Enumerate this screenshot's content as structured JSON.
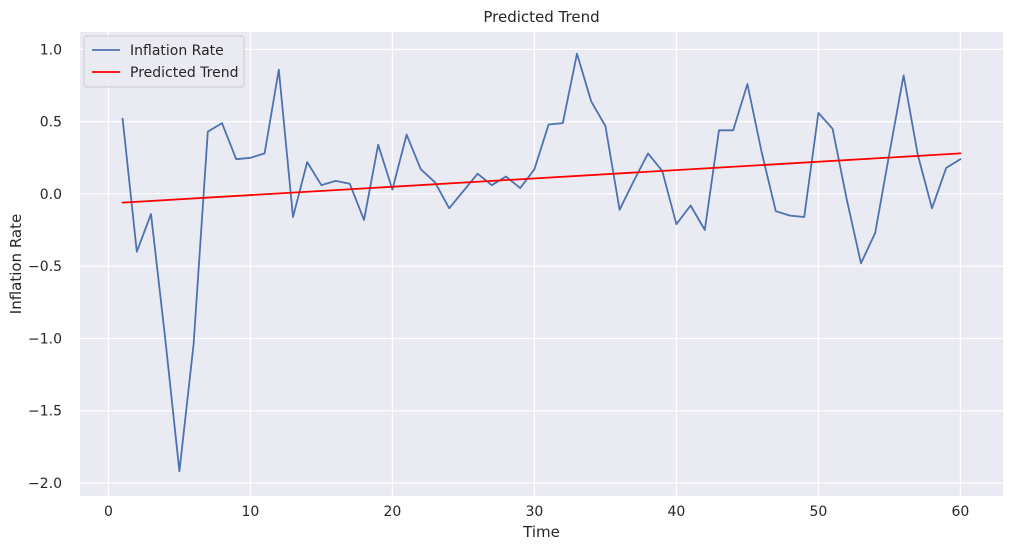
{
  "chart_data": {
    "type": "line",
    "title": "Predicted Trend",
    "xlabel": "Time",
    "ylabel": "Inflation Rate",
    "xlim": [
      -2,
      63
    ],
    "ylim": [
      -2.09,
      1.12
    ],
    "xticks": [
      0,
      10,
      20,
      30,
      40,
      50,
      60
    ],
    "yticks": [
      -2.0,
      -1.5,
      -1.0,
      -0.5,
      0.0,
      0.5,
      1.0
    ],
    "ytick_labels": [
      "−2.0",
      "−1.5",
      "−1.0",
      "−0.5",
      "0.0",
      "0.5",
      "1.0"
    ],
    "grid": true,
    "legend_position": "top-left",
    "series": [
      {
        "name": "Inflation Rate",
        "color": "#4c72b0",
        "x": [
          1,
          2,
          3,
          4,
          5,
          6,
          7,
          8,
          9,
          10,
          11,
          12,
          13,
          14,
          15,
          16,
          17,
          18,
          19,
          20,
          21,
          22,
          23,
          24,
          25,
          26,
          27,
          28,
          29,
          30,
          31,
          32,
          33,
          34,
          35,
          36,
          37,
          38,
          39,
          40,
          41,
          42,
          43,
          44,
          45,
          46,
          47,
          48,
          49,
          50,
          51,
          52,
          53,
          54,
          55,
          56,
          57,
          58,
          59,
          60
        ],
        "y": [
          0.52,
          -0.4,
          -0.14,
          -1.0,
          -1.92,
          -1.04,
          0.43,
          0.49,
          0.24,
          0.25,
          0.28,
          0.86,
          -0.16,
          0.22,
          0.06,
          0.09,
          0.07,
          -0.18,
          0.34,
          0.03,
          0.41,
          0.17,
          0.08,
          -0.1,
          0.02,
          0.14,
          0.06,
          0.12,
          0.04,
          0.17,
          0.48,
          0.49,
          0.97,
          0.64,
          0.47,
          -0.11,
          0.09,
          0.28,
          0.16,
          -0.21,
          -0.08,
          -0.25,
          0.44,
          0.44,
          0.76,
          0.29,
          -0.12,
          -0.15,
          -0.16,
          0.56,
          0.45,
          -0.04,
          -0.48,
          -0.27,
          0.28,
          0.82,
          0.27,
          -0.1,
          0.18,
          0.24
        ]
      },
      {
        "name": "Predicted Trend",
        "color": "#ff0000",
        "x": [
          1,
          60
        ],
        "y": [
          -0.06,
          0.28
        ]
      }
    ]
  }
}
